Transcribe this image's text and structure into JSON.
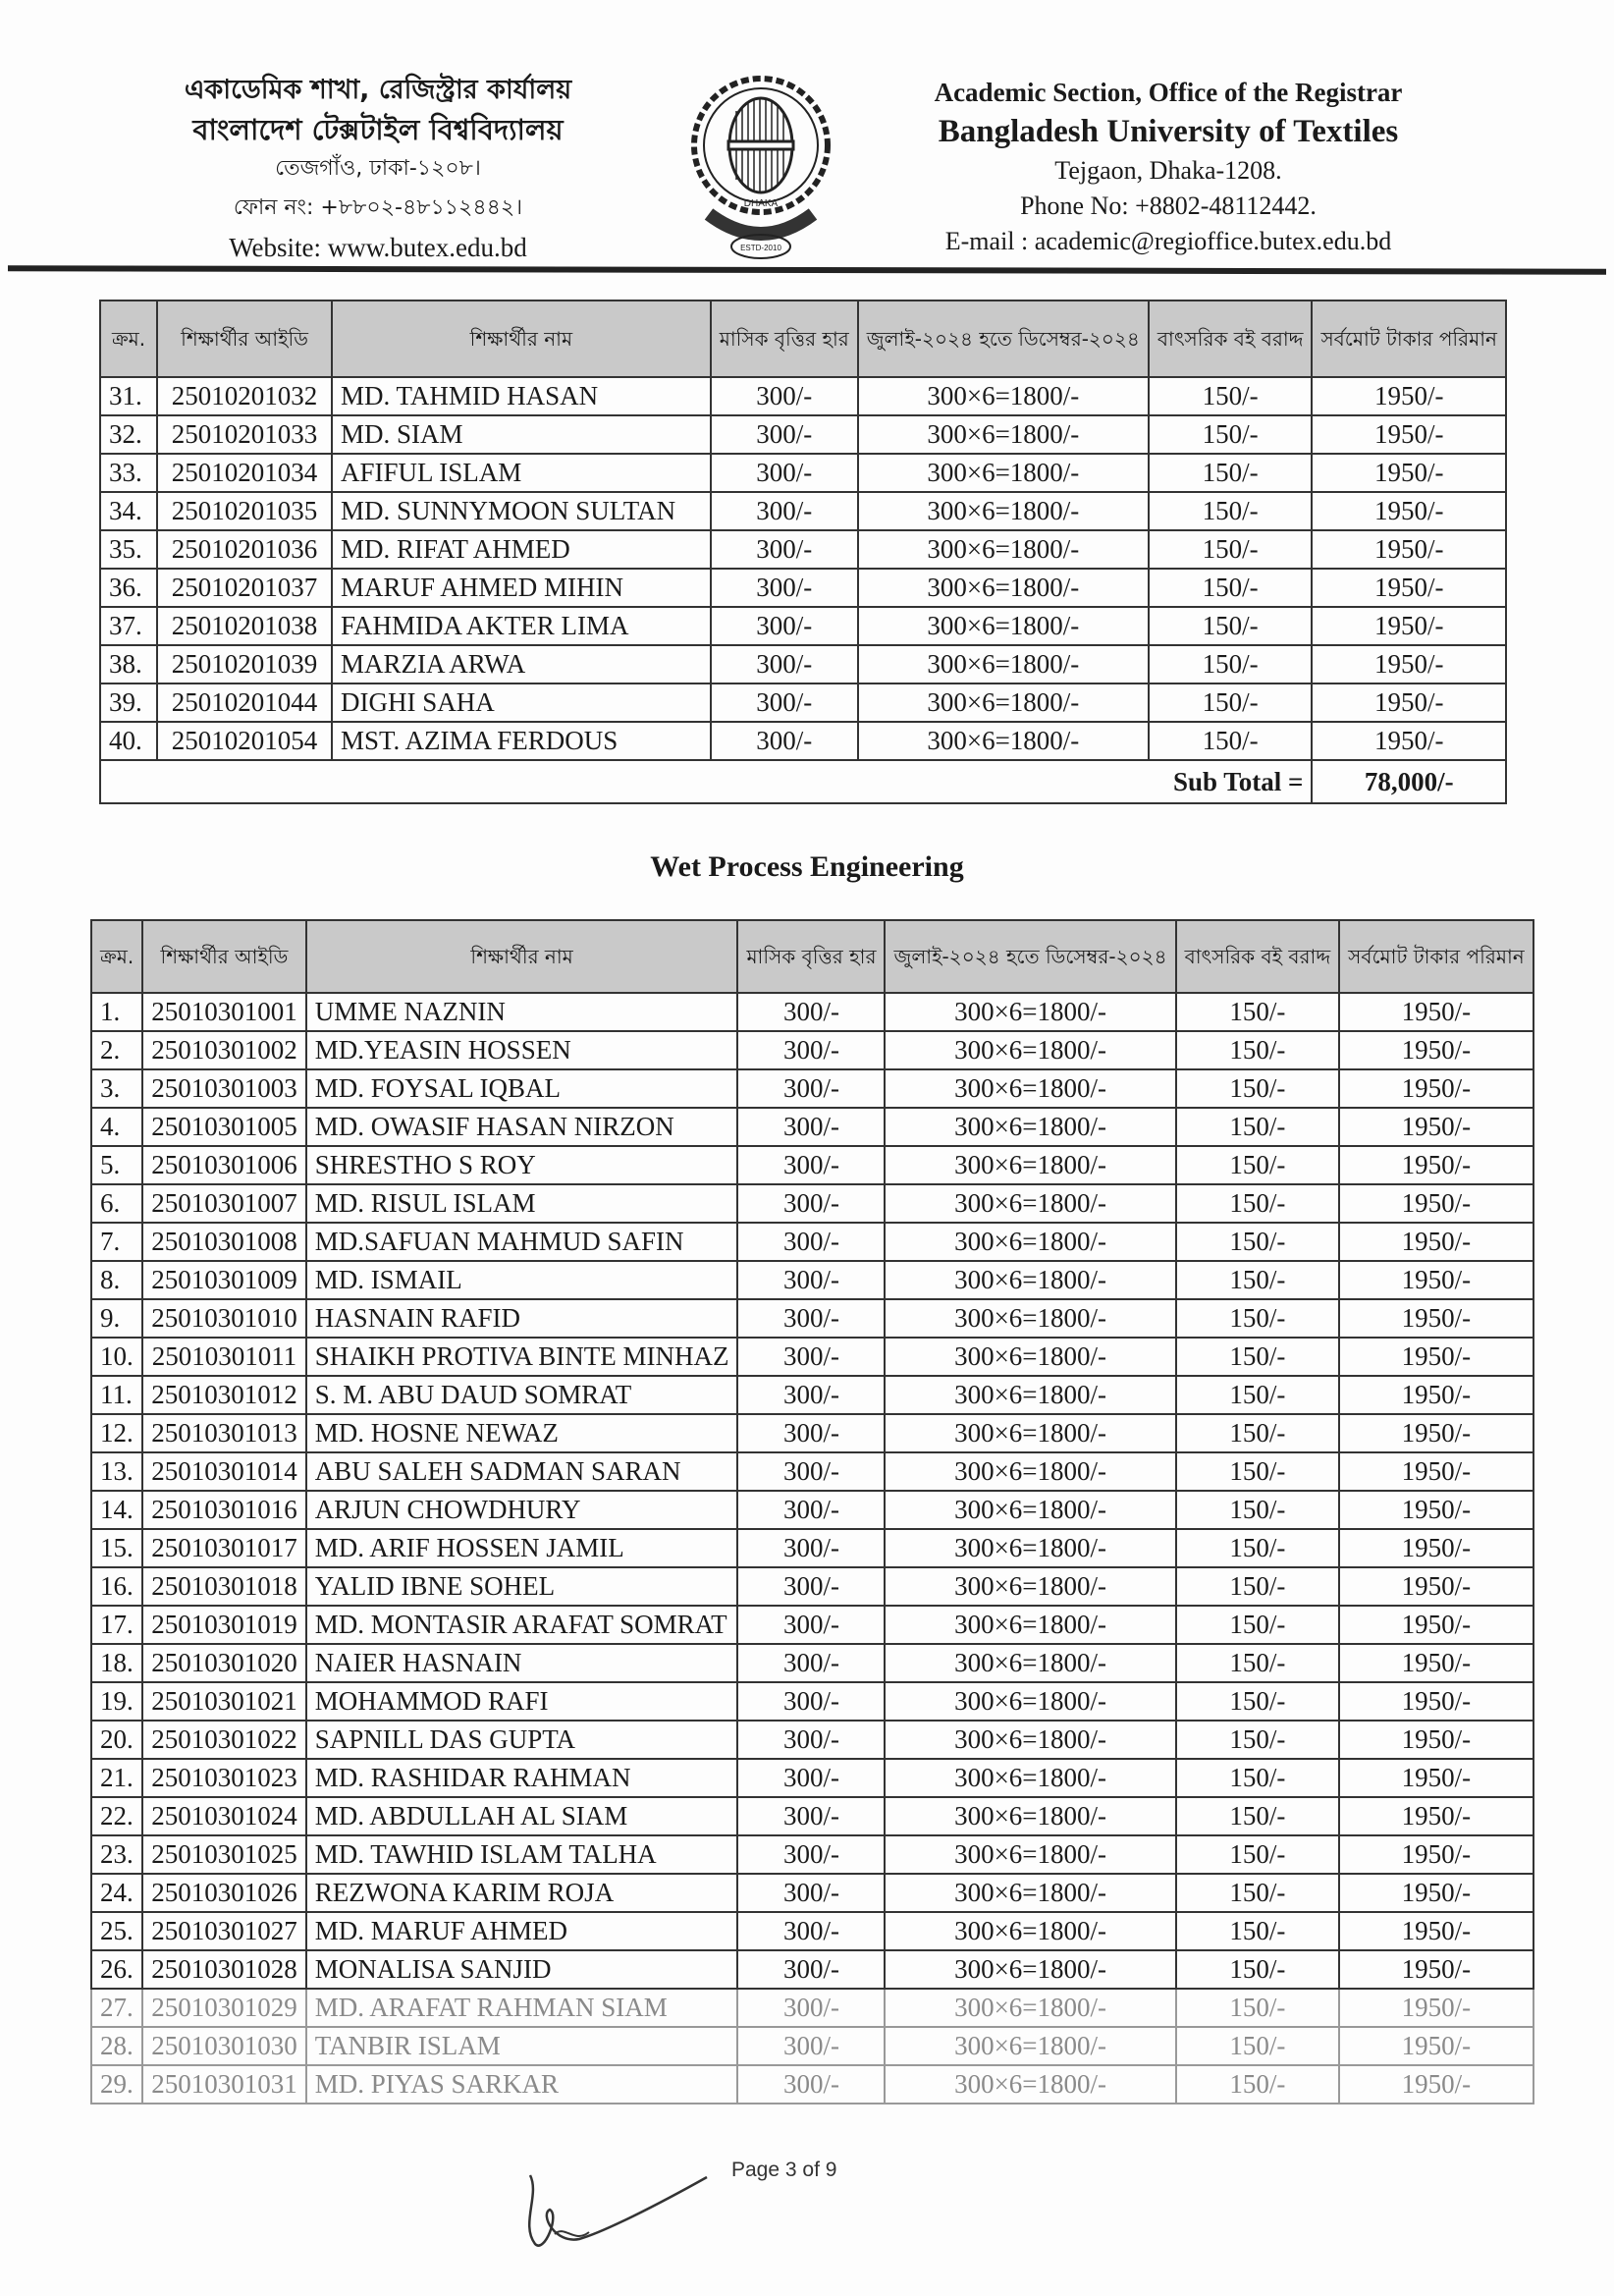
{
  "header": {
    "bn_line1": "একাডেমিক শাখা, রেজিস্ট্রার কার্যালয়",
    "bn_line2": "বাংলাদেশ টেক্সটাইল বিশ্ববিদ্যালয়",
    "bn_line3": "তেজগাঁও, ঢাকা-১২০৮।",
    "bn_line4": "ফোন নং: +৮৮০২-৪৮১১২৪৪২।",
    "website": "Website: www.butex.edu.bd",
    "en_line1": "Academic Section, Office of the Registrar",
    "en_line2": "Bangladesh University of Textiles",
    "en_line3": "Tejgaon, Dhaka-1208.",
    "phone": "Phone No: +8802-48112442.",
    "email": "E-mail : academic@regioffice.butex.edu.bd",
    "logo_text": [
      "BANGLADESH UNIVERSITY OF TEXTILES",
      "DHAKA",
      "KNOWLEDGE IS POWER",
      "ESTD-2010"
    ]
  },
  "columns": [
    "ক্রম.",
    "শিক্ষার্থীর আইডি",
    "শিক্ষার্থীর নাম",
    "মাসিক বৃত্তির হার",
    "জুলাই-২০২৪ হতে ডিসেম্বর-২০২৪",
    "বাৎসরিক বই বরাদ্দ",
    "সর্বমোট টাকার পরিমান"
  ],
  "table1": {
    "rows": [
      [
        "31.",
        "25010201032",
        "MD. TAHMID HASAN",
        "300/-",
        "300×6=1800/-",
        "150/-",
        "1950/-"
      ],
      [
        "32.",
        "25010201033",
        "MD. SIAM",
        "300/-",
        "300×6=1800/-",
        "150/-",
        "1950/-"
      ],
      [
        "33.",
        "25010201034",
        "AFIFUL ISLAM",
        "300/-",
        "300×6=1800/-",
        "150/-",
        "1950/-"
      ],
      [
        "34.",
        "25010201035",
        "MD. SUNNYMOON SULTAN",
        "300/-",
        "300×6=1800/-",
        "150/-",
        "1950/-"
      ],
      [
        "35.",
        "25010201036",
        "MD. RIFAT AHMED",
        "300/-",
        "300×6=1800/-",
        "150/-",
        "1950/-"
      ],
      [
        "36.",
        "25010201037",
        "MARUF AHMED MIHIN",
        "300/-",
        "300×6=1800/-",
        "150/-",
        "1950/-"
      ],
      [
        "37.",
        "25010201038",
        "FAHMIDA AKTER LIMA",
        "300/-",
        "300×6=1800/-",
        "150/-",
        "1950/-"
      ],
      [
        "38.",
        "25010201039",
        "MARZIA ARWA",
        "300/-",
        "300×6=1800/-",
        "150/-",
        "1950/-"
      ],
      [
        "39.",
        "25010201044",
        "DIGHI SAHA",
        "300/-",
        "300×6=1800/-",
        "150/-",
        "1950/-"
      ],
      [
        "40.",
        "25010201054",
        "MST. AZIMA FERDOUS",
        "300/-",
        "300×6=1800/-",
        "150/-",
        "1950/-"
      ]
    ],
    "subtotal_label": "Sub Total =",
    "subtotal_value": "78,000/-"
  },
  "section_title": "Wet Process Engineering",
  "table2": {
    "rows": [
      [
        "1.",
        "25010301001",
        "UMME NAZNIN",
        "300/-",
        "300×6=1800/-",
        "150/-",
        "1950/-"
      ],
      [
        "2.",
        "25010301002",
        "MD.YEASIN HOSSEN",
        "300/-",
        "300×6=1800/-",
        "150/-",
        "1950/-"
      ],
      [
        "3.",
        "25010301003",
        "MD. FOYSAL IQBAL",
        "300/-",
        "300×6=1800/-",
        "150/-",
        "1950/-"
      ],
      [
        "4.",
        "25010301005",
        "MD. OWASIF HASAN NIRZON",
        "300/-",
        "300×6=1800/-",
        "150/-",
        "1950/-"
      ],
      [
        "5.",
        "25010301006",
        "SHRESTHO S ROY",
        "300/-",
        "300×6=1800/-",
        "150/-",
        "1950/-"
      ],
      [
        "6.",
        "25010301007",
        "MD. RISUL ISLAM",
        "300/-",
        "300×6=1800/-",
        "150/-",
        "1950/-"
      ],
      [
        "7.",
        "25010301008",
        "MD.SAFUAN MAHMUD SAFIN",
        "300/-",
        "300×6=1800/-",
        "150/-",
        "1950/-"
      ],
      [
        "8.",
        "25010301009",
        "MD. ISMAIL",
        "300/-",
        "300×6=1800/-",
        "150/-",
        "1950/-"
      ],
      [
        "9.",
        "25010301010",
        "HASNAIN RAFID",
        "300/-",
        "300×6=1800/-",
        "150/-",
        "1950/-"
      ],
      [
        "10.",
        "25010301011",
        "SHAIKH PROTIVA BINTE MINHAZ",
        "300/-",
        "300×6=1800/-",
        "150/-",
        "1950/-"
      ],
      [
        "11.",
        "25010301012",
        "S. M. ABU DAUD SOMRAT",
        "300/-",
        "300×6=1800/-",
        "150/-",
        "1950/-"
      ],
      [
        "12.",
        "25010301013",
        "MD. HOSNE NEWAZ",
        "300/-",
        "300×6=1800/-",
        "150/-",
        "1950/-"
      ],
      [
        "13.",
        "25010301014",
        "ABU SALEH SADMAN SARAN",
        "300/-",
        "300×6=1800/-",
        "150/-",
        "1950/-"
      ],
      [
        "14.",
        "25010301016",
        "ARJUN CHOWDHURY",
        "300/-",
        "300×6=1800/-",
        "150/-",
        "1950/-"
      ],
      [
        "15.",
        "25010301017",
        "MD. ARIF HOSSEN JAMIL",
        "300/-",
        "300×6=1800/-",
        "150/-",
        "1950/-"
      ],
      [
        "16.",
        "25010301018",
        "YALID IBNE SOHEL",
        "300/-",
        "300×6=1800/-",
        "150/-",
        "1950/-"
      ],
      [
        "17.",
        "25010301019",
        "MD. MONTASIR ARAFAT SOMRAT",
        "300/-",
        "300×6=1800/-",
        "150/-",
        "1950/-"
      ],
      [
        "18.",
        "25010301020",
        "NAIER HASNAIN",
        "300/-",
        "300×6=1800/-",
        "150/-",
        "1950/-"
      ],
      [
        "19.",
        "25010301021",
        "MOHAMMOD RAFI",
        "300/-",
        "300×6=1800/-",
        "150/-",
        "1950/-"
      ],
      [
        "20.",
        "25010301022",
        "SAPNILL DAS GUPTA",
        "300/-",
        "300×6=1800/-",
        "150/-",
        "1950/-"
      ],
      [
        "21.",
        "25010301023",
        "MD. RASHIDAR RAHMAN",
        "300/-",
        "300×6=1800/-",
        "150/-",
        "1950/-"
      ],
      [
        "22.",
        "25010301024",
        "MD. ABDULLAH AL SIAM",
        "300/-",
        "300×6=1800/-",
        "150/-",
        "1950/-"
      ],
      [
        "23.",
        "25010301025",
        "MD. TAWHID ISLAM TALHA",
        "300/-",
        "300×6=1800/-",
        "150/-",
        "1950/-"
      ],
      [
        "24.",
        "25010301026",
        "REZWONA KARIM ROJA",
        "300/-",
        "300×6=1800/-",
        "150/-",
        "1950/-"
      ],
      [
        "25.",
        "25010301027",
        "MD. MARUF AHMED",
        "300/-",
        "300×6=1800/-",
        "150/-",
        "1950/-"
      ],
      [
        "26.",
        "25010301028",
        "MONALISA SANJID",
        "300/-",
        "300×6=1800/-",
        "150/-",
        "1950/-"
      ],
      [
        "27.",
        "25010301029",
        "MD. ARAFAT RAHMAN SIAM",
        "300/-",
        "300×6=1800/-",
        "150/-",
        "1950/-"
      ],
      [
        "28.",
        "25010301030",
        "TANBIR ISLAM",
        "300/-",
        "300×6=1800/-",
        "150/-",
        "1950/-"
      ],
      [
        "29.",
        "25010301031",
        "MD. PIYAS SARKAR",
        "300/-",
        "300×6=1800/-",
        "150/-",
        "1950/-"
      ]
    ]
  },
  "footer": {
    "page": "Page 3 of 9"
  }
}
